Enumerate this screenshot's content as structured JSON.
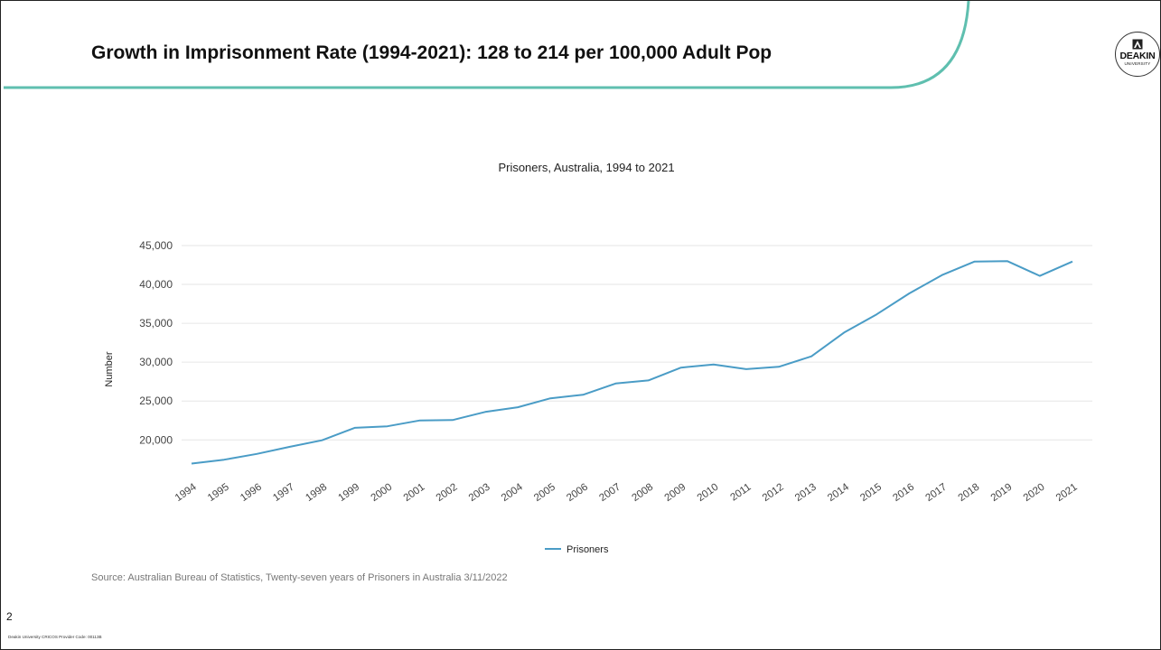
{
  "slide": {
    "title": "Growth in Imprisonment Rate (1994-2021): 128 to 214 per 100,000 Adult Pop",
    "logo": {
      "name": "DEAKIN",
      "subtitle": "UNIVERSITY"
    },
    "source": "Source: Australian Bureau of Statistics, Twenty-seven years of Prisoners in Australia 3/11/2022",
    "slide_number": "2",
    "footer": "Deakin University CRICOS Provider Code: 00113B",
    "accent_color": "#5fbfaf"
  },
  "chart_data": {
    "type": "line",
    "title": "Prisoners, Australia, 1994 to 2021",
    "xlabel": "",
    "ylabel": "Number",
    "categories": [
      "1994",
      "1995",
      "1996",
      "1997",
      "1998",
      "1999",
      "2000",
      "2001",
      "2002",
      "2003",
      "2004",
      "2005",
      "2006",
      "2007",
      "2008",
      "2009",
      "2010",
      "2011",
      "2012",
      "2013",
      "2014",
      "2015",
      "2016",
      "2017",
      "2018",
      "2019",
      "2020",
      "2021"
    ],
    "series": [
      {
        "name": "Prisoners",
        "color": "#4a9cc6",
        "values": [
          16950,
          17450,
          18200,
          19100,
          19950,
          21550,
          21750,
          22500,
          22550,
          23600,
          24200,
          25350,
          25800,
          27250,
          27650,
          29300,
          29700,
          29100,
          29400,
          30750,
          33800,
          36150,
          38850,
          41200,
          42950,
          43000,
          41100,
          42950
        ]
      }
    ],
    "yticks": [
      "20,000",
      "25,000",
      "30,000",
      "35,000",
      "40,000",
      "45,000"
    ],
    "ytick_values": [
      20000,
      25000,
      30000,
      35000,
      40000,
      45000
    ],
    "ylim": [
      15500,
      45000
    ],
    "grid": true,
    "legend_position": "bottom"
  }
}
